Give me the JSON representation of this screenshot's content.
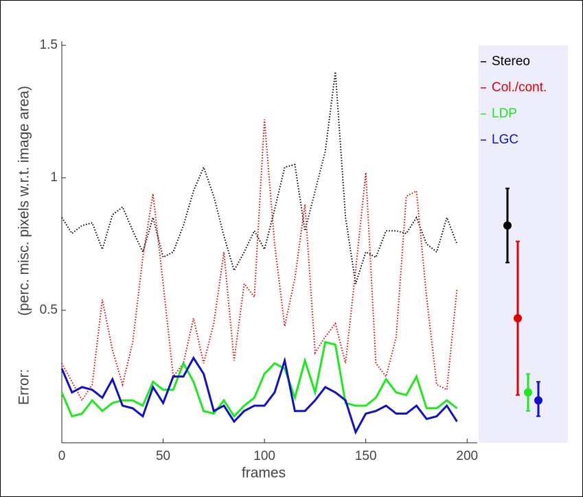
{
  "chart_data": {
    "type": "line",
    "ylabel": [
      "Error:",
      "(perc. misc. pixels w.r.t. image area)"
    ],
    "xlabel": "frames",
    "x": [
      0,
      5,
      10,
      15,
      20,
      25,
      30,
      35,
      40,
      45,
      50,
      55,
      60,
      65,
      70,
      75,
      80,
      85,
      90,
      95,
      100,
      105,
      110,
      115,
      120,
      125,
      130,
      135,
      140,
      145,
      150,
      155,
      160,
      165,
      170,
      175,
      180,
      185,
      190,
      195
    ],
    "xlim": [
      0,
      205
    ],
    "xticks": [
      0,
      50,
      100,
      150,
      200
    ],
    "ylim": [
      0,
      1.5
    ],
    "yticks": [
      0.5,
      1,
      1.5
    ],
    "series": [
      {
        "name": "Stereo",
        "color": "#000000",
        "dashed": true,
        "mean": 0.82,
        "low": 0.68,
        "high": 0.96,
        "values": [
          0.85,
          0.79,
          0.82,
          0.83,
          0.73,
          0.86,
          0.89,
          0.8,
          0.72,
          0.85,
          0.7,
          0.72,
          0.82,
          0.95,
          1.04,
          0.93,
          0.78,
          0.65,
          0.72,
          0.8,
          0.73,
          0.88,
          1.04,
          1.05,
          0.8,
          0.95,
          1.1,
          1.4,
          0.85,
          0.6,
          0.72,
          0.7,
          0.8,
          0.8,
          0.79,
          0.85,
          0.75,
          0.72,
          0.85,
          0.75
        ]
      },
      {
        "name": "Col./cont.",
        "color": "#e00000",
        "dashed": true,
        "mean": 0.47,
        "low": 0.18,
        "high": 0.76,
        "values": [
          0.3,
          0.23,
          0.16,
          0.22,
          0.54,
          0.35,
          0.22,
          0.38,
          0.7,
          0.94,
          0.6,
          0.25,
          0.3,
          0.47,
          0.3,
          0.45,
          0.72,
          0.31,
          0.6,
          0.55,
          1.22,
          0.75,
          0.44,
          0.62,
          0.9,
          0.34,
          0.4,
          0.45,
          0.3,
          0.65,
          1.02,
          0.3,
          0.25,
          0.4,
          0.93,
          0.95,
          0.55,
          0.22,
          0.2,
          0.58
        ]
      },
      {
        "name": "LDP",
        "color": "#1ee81e",
        "dashed": false,
        "mean": 0.19,
        "low": 0.12,
        "high": 0.26,
        "values": [
          0.19,
          0.1,
          0.11,
          0.16,
          0.12,
          0.15,
          0.16,
          0.16,
          0.14,
          0.23,
          0.2,
          0.2,
          0.3,
          0.23,
          0.12,
          0.11,
          0.16,
          0.1,
          0.14,
          0.17,
          0.26,
          0.3,
          0.28,
          0.17,
          0.31,
          0.19,
          0.38,
          0.37,
          0.15,
          0.14,
          0.14,
          0.17,
          0.24,
          0.19,
          0.18,
          0.25,
          0.13,
          0.13,
          0.16,
          0.13
        ]
      },
      {
        "name": "LGC",
        "color": "#1010c8",
        "dashed": false,
        "mean": 0.16,
        "low": 0.1,
        "high": 0.23,
        "values": [
          0.28,
          0.19,
          0.21,
          0.2,
          0.17,
          0.24,
          0.14,
          0.13,
          0.1,
          0.21,
          0.15,
          0.25,
          0.25,
          0.32,
          0.26,
          0.12,
          0.14,
          0.08,
          0.12,
          0.14,
          0.14,
          0.19,
          0.31,
          0.12,
          0.12,
          0.16,
          0.21,
          0.19,
          0.16,
          0.04,
          0.11,
          0.12,
          0.14,
          0.11,
          0.11,
          0.14,
          0.09,
          0.1,
          0.14,
          0.08
        ]
      }
    ]
  }
}
